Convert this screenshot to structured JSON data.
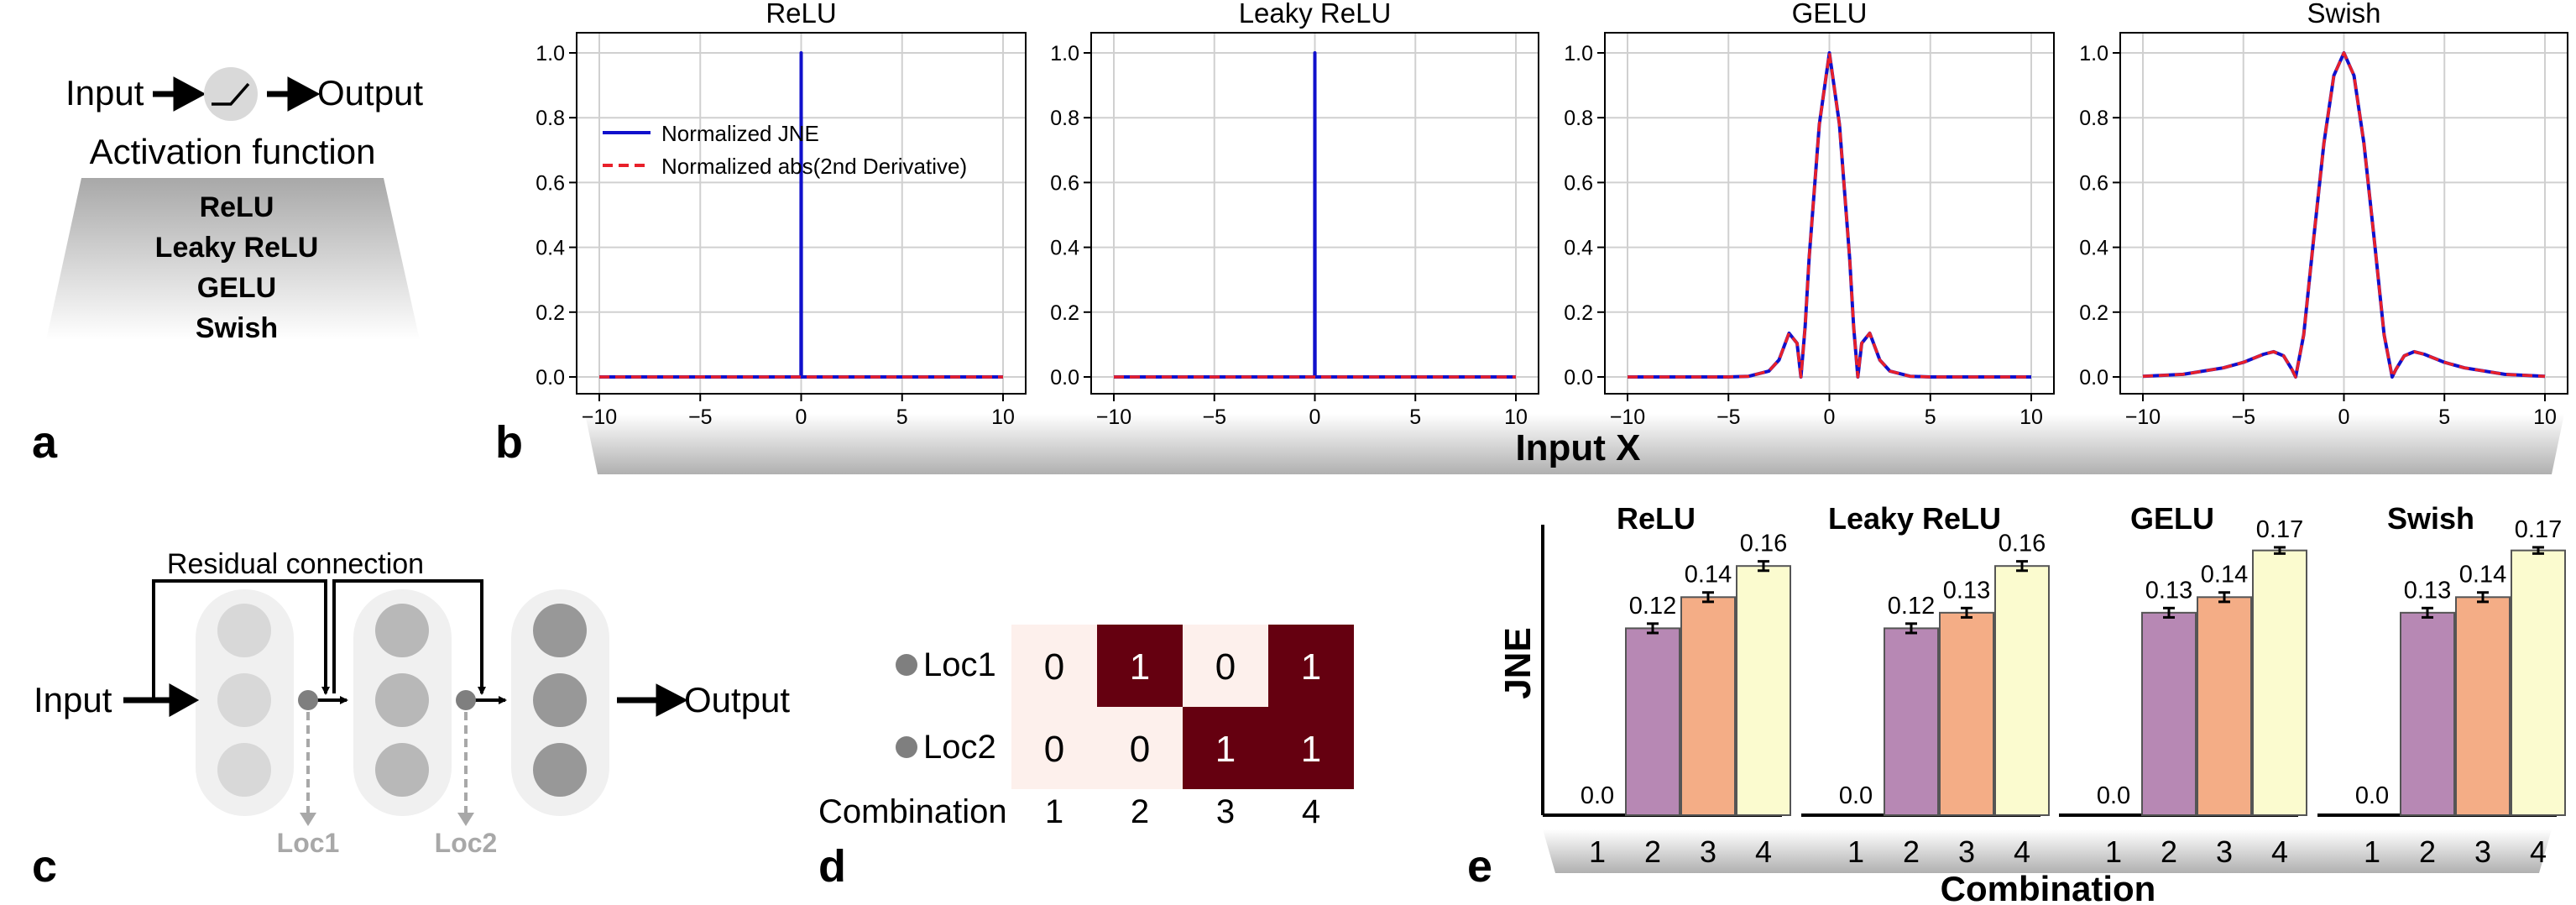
{
  "panel_a": {
    "label": "a",
    "input": "Input",
    "output": "Output",
    "caption": "Activation function",
    "items": [
      "ReLU",
      "Leaky ReLU",
      "GELU",
      "Swish"
    ]
  },
  "panel_b": {
    "label": "b",
    "xlabel": "Input X",
    "legend": [
      "Normalized JNE",
      "Normalized abs(2nd Derivative)"
    ],
    "colors": {
      "jne": "#1010cc",
      "deriv": "#e8202a"
    }
  },
  "panel_c": {
    "label": "c",
    "residual": "Residual connection",
    "input": "Input",
    "output": "Output",
    "loc1": "Loc1",
    "loc2": "Loc2"
  },
  "panel_d": {
    "label": "d",
    "rows": [
      "Loc1",
      "Loc2"
    ],
    "xlabel": "Combination",
    "colors": {
      "on": "#650010",
      "off": "#fdf0ec"
    }
  },
  "panel_e": {
    "label": "e",
    "ylabel": "JNE",
    "xlabel": "Combination",
    "colors": [
      "#b788b4",
      "#f4ad86",
      "#fbfbcf"
    ]
  },
  "chart_data": [
    {
      "type": "line",
      "title": "ReLU",
      "xlim": [
        -10,
        10
      ],
      "ylim": [
        0,
        1
      ],
      "xticks": [
        -10,
        -5,
        0,
        5,
        10
      ],
      "yticks": [
        0.0,
        0.2,
        0.4,
        0.6,
        0.8,
        1.0
      ],
      "series": [
        {
          "name": "Normalized JNE",
          "x": [
            -10,
            -0.01,
            0,
            0.01,
            10
          ],
          "y": [
            0,
            0,
            1,
            0,
            0
          ]
        },
        {
          "name": "Normalized abs(2nd Derivative)",
          "x": [
            -10,
            10
          ],
          "y": [
            0,
            0
          ]
        }
      ]
    },
    {
      "type": "line",
      "title": "Leaky ReLU",
      "xlim": [
        -10,
        10
      ],
      "ylim": [
        0,
        1
      ],
      "xticks": [
        -10,
        -5,
        0,
        5,
        10
      ],
      "yticks": [
        0.0,
        0.2,
        0.4,
        0.6,
        0.8,
        1.0
      ],
      "series": [
        {
          "name": "Normalized JNE",
          "x": [
            -10,
            -0.01,
            0,
            0.01,
            10
          ],
          "y": [
            0,
            0,
            1,
            0,
            0
          ]
        },
        {
          "name": "Normalized abs(2nd Derivative)",
          "x": [
            -10,
            10
          ],
          "y": [
            0,
            0
          ]
        }
      ]
    },
    {
      "type": "line",
      "title": "GELU",
      "xlim": [
        -10,
        10
      ],
      "ylim": [
        0,
        1
      ],
      "xticks": [
        -10,
        -5,
        0,
        5,
        10
      ],
      "yticks": [
        0.0,
        0.2,
        0.4,
        0.6,
        0.8,
        1.0
      ],
      "series": [
        {
          "name": "Normalized JNE",
          "x": [
            -10,
            -5,
            -4,
            -3,
            -2.5,
            -2,
            -1.6,
            -1.41,
            -1.2,
            -1,
            -0.5,
            0,
            0.5,
            1,
            1.2,
            1.41,
            1.6,
            2,
            2.5,
            3,
            4,
            5,
            10
          ],
          "y": [
            0,
            0,
            0.002,
            0.018,
            0.052,
            0.135,
            0.104,
            0,
            0.155,
            0.368,
            0.779,
            1,
            0.779,
            0.368,
            0.155,
            0,
            0.104,
            0.135,
            0.052,
            0.018,
            0.002,
            0,
            0
          ]
        },
        {
          "name": "Normalized abs(2nd Derivative)",
          "x": [
            -10,
            -5,
            -4,
            -3,
            -2.5,
            -2,
            -1.6,
            -1.41,
            -1.2,
            -1,
            -0.5,
            0,
            0.5,
            1,
            1.2,
            1.41,
            1.6,
            2,
            2.5,
            3,
            4,
            5,
            10
          ],
          "y": [
            0,
            0,
            0.002,
            0.018,
            0.052,
            0.135,
            0.104,
            0,
            0.155,
            0.368,
            0.779,
            1,
            0.779,
            0.368,
            0.155,
            0,
            0.104,
            0.135,
            0.052,
            0.018,
            0.002,
            0,
            0
          ]
        }
      ]
    },
    {
      "type": "line",
      "title": "Swish",
      "xlim": [
        -10,
        10
      ],
      "ylim": [
        0,
        1
      ],
      "xticks": [
        -10,
        -5,
        0,
        5,
        10
      ],
      "yticks": [
        0.0,
        0.2,
        0.4,
        0.6,
        0.8,
        1.0
      ],
      "series": [
        {
          "name": "Normalized JNE",
          "x": [
            -10,
            -8,
            -6,
            -5,
            -4,
            -3.5,
            -3,
            -2.6,
            -2.4,
            -2,
            -1.5,
            -1,
            -0.5,
            0,
            0.5,
            1,
            1.5,
            2,
            2.4,
            2.6,
            3,
            3.5,
            4,
            5,
            6,
            8,
            10
          ],
          "y": [
            0.002,
            0.008,
            0.028,
            0.045,
            0.07,
            0.078,
            0.065,
            0.025,
            0,
            0.13,
            0.43,
            0.72,
            0.93,
            1,
            0.93,
            0.72,
            0.43,
            0.13,
            0,
            0.025,
            0.065,
            0.078,
            0.07,
            0.045,
            0.028,
            0.008,
            0.002
          ]
        },
        {
          "name": "Normalized abs(2nd Derivative)",
          "x": [
            -10,
            -8,
            -6,
            -5,
            -4,
            -3.5,
            -3,
            -2.6,
            -2.4,
            -2,
            -1.5,
            -1,
            -0.5,
            0,
            0.5,
            1,
            1.5,
            2,
            2.4,
            2.6,
            3,
            3.5,
            4,
            5,
            6,
            8,
            10
          ],
          "y": [
            0.002,
            0.008,
            0.028,
            0.045,
            0.07,
            0.078,
            0.065,
            0.025,
            0,
            0.13,
            0.43,
            0.72,
            0.93,
            1,
            0.93,
            0.72,
            0.43,
            0.13,
            0,
            0.025,
            0.065,
            0.078,
            0.07,
            0.045,
            0.028,
            0.008,
            0.002
          ]
        }
      ]
    },
    {
      "type": "heatmap",
      "rows": [
        "Loc1",
        "Loc2"
      ],
      "categories": [
        "1",
        "2",
        "3",
        "4"
      ],
      "values": [
        [
          0,
          1,
          0,
          1
        ],
        [
          0,
          0,
          1,
          1
        ]
      ],
      "xlabel": "Combination"
    },
    {
      "type": "bar",
      "title": "ReLU",
      "categories": [
        "1",
        "2",
        "3",
        "4"
      ],
      "values": [
        0.0,
        0.12,
        0.14,
        0.16
      ],
      "labels": [
        "0.0",
        "0.12",
        "0.14",
        "0.16"
      ],
      "errors": [
        0,
        0.003,
        0.003,
        0.003
      ],
      "ylim": [
        0,
        0.2
      ],
      "ylabel": "JNE",
      "xlabel": "Combination"
    },
    {
      "type": "bar",
      "title": "Leaky ReLU",
      "categories": [
        "1",
        "2",
        "3",
        "4"
      ],
      "values": [
        0.0,
        0.12,
        0.13,
        0.16
      ],
      "labels": [
        "0.0",
        "0.12",
        "0.13",
        "0.16"
      ],
      "errors": [
        0,
        0.003,
        0.003,
        0.003
      ],
      "ylim": [
        0,
        0.2
      ],
      "ylabel": "JNE",
      "xlabel": "Combination"
    },
    {
      "type": "bar",
      "title": "GELU",
      "categories": [
        "1",
        "2",
        "3",
        "4"
      ],
      "values": [
        0.0,
        0.13,
        0.14,
        0.17
      ],
      "labels": [
        "0.0",
        "0.13",
        "0.14",
        "0.17"
      ],
      "errors": [
        0,
        0.003,
        0.003,
        0.002
      ],
      "ylim": [
        0,
        0.2
      ],
      "ylabel": "JNE",
      "xlabel": "Combination"
    },
    {
      "type": "bar",
      "title": "Swish",
      "categories": [
        "1",
        "2",
        "3",
        "4"
      ],
      "values": [
        0.0,
        0.13,
        0.14,
        0.17
      ],
      "labels": [
        "0.0",
        "0.13",
        "0.14",
        "0.17"
      ],
      "errors": [
        0,
        0.003,
        0.003,
        0.002
      ],
      "ylim": [
        0,
        0.2
      ],
      "ylabel": "JNE",
      "xlabel": "Combination"
    }
  ]
}
